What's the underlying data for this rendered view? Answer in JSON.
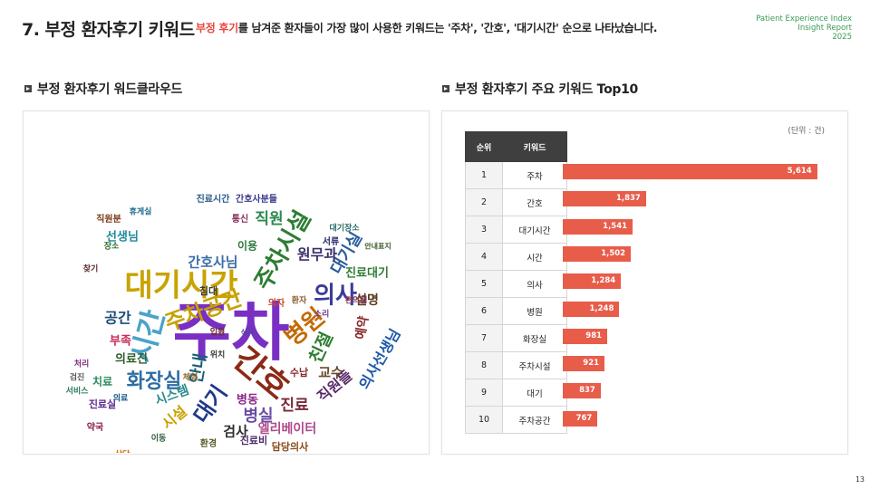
{
  "header": {
    "title": "7. 부정 환자후기 키워드",
    "subtitle_highlight": "부정 후기",
    "subtitle_rest": "를 남겨준 환자들이 가장 많이 사용한 키워드는 '주차', '간호', '대기시간' 순으로 나타났습니다.",
    "brand_line1": "Patient Experience Index",
    "brand_line2": "Insight Report",
    "brand_line3": "2025"
  },
  "sections": {
    "wordcloud_title": "부정 환자후기 워드클라우드",
    "chart_title": "부정 환자후기 주요 키워드 Top10"
  },
  "unit_label": "(단위 : 건)",
  "table_headers": {
    "rank": "순위",
    "keyword": "키워드"
  },
  "colors": {
    "bar": "#e85d4a",
    "accent": "#e8453c",
    "brand": "#3a9a56"
  },
  "chart_data": {
    "type": "bar",
    "orientation": "horizontal",
    "categories": [
      "주차",
      "간호",
      "대기시간",
      "시간",
      "의사",
      "병원",
      "화장실",
      "주차시설",
      "대기",
      "주차공간"
    ],
    "ranks": [
      "1",
      "2",
      "3",
      "4",
      "5",
      "6",
      "7",
      "8",
      "9",
      "10"
    ],
    "values": [
      5614,
      1837,
      1541,
      1502,
      1284,
      1248,
      981,
      921,
      837,
      767
    ],
    "value_labels": [
      "5,614",
      "1,837",
      "1,541",
      "1,502",
      "1,284",
      "1,248",
      "981",
      "921",
      "837",
      "767"
    ],
    "xlim": [
      0,
      5800
    ]
  },
  "wordcloud_words": [
    {
      "text": "주차",
      "color": "#7a2fc4"
    },
    {
      "text": "대기시간",
      "color": "#c9a300"
    },
    {
      "text": "간호",
      "color": "#8b2a16"
    },
    {
      "text": "주차시설",
      "color": "#2e7d32"
    },
    {
      "text": "주차공간",
      "color": "#c7a000"
    },
    {
      "text": "시간",
      "color": "#4aa3c9"
    },
    {
      "text": "의사",
      "color": "#3b3b9b"
    },
    {
      "text": "화장실",
      "color": "#2f6da3"
    },
    {
      "text": "병원",
      "color": "#c46a00"
    },
    {
      "text": "대기",
      "color": "#1e3a8a"
    },
    {
      "text": "병실",
      "color": "#6b4ea3"
    },
    {
      "text": "진료",
      "color": "#7a2a3a"
    },
    {
      "text": "안내",
      "color": "#1b5e7a"
    },
    {
      "text": "간호사님",
      "color": "#3b6ea8"
    },
    {
      "text": "직원",
      "color": "#2d8a4e"
    },
    {
      "text": "친절",
      "color": "#2e7d32"
    },
    {
      "text": "대기실",
      "color": "#2b5d9b"
    },
    {
      "text": "설명",
      "color": "#5a3a1a"
    },
    {
      "text": "예약",
      "color": "#8b2a2a"
    },
    {
      "text": "교수",
      "color": "#6a4c2a"
    },
    {
      "text": "원무과",
      "color": "#3a2f6b"
    },
    {
      "text": "진료대기",
      "color": "#2e7d32"
    },
    {
      "text": "의사선생님",
      "color": "#1e5aa8"
    },
    {
      "text": "직원들",
      "color": "#5a2a6b"
    },
    {
      "text": "엘리베이터",
      "color": "#b04a8b"
    },
    {
      "text": "검사",
      "color": "#2f2f2f"
    },
    {
      "text": "시설",
      "color": "#c9a300"
    },
    {
      "text": "시스템",
      "color": "#2b8a8a"
    },
    {
      "text": "병동",
      "color": "#8a2a8a"
    },
    {
      "text": "공간",
      "color": "#1a4d7a"
    },
    {
      "text": "부족",
      "color": "#c92a5a"
    },
    {
      "text": "의료진",
      "color": "#2e5d2e"
    },
    {
      "text": "선생님",
      "color": "#1e8a9b"
    },
    {
      "text": "진료비",
      "color": "#4a2a6b"
    },
    {
      "text": "담당의사",
      "color": "#8a4a1a"
    },
    {
      "text": "이용",
      "color": "#2a7a3a"
    },
    {
      "text": "침대",
      "color": "#3a3a3a"
    },
    {
      "text": "수납",
      "color": "#8a2a2a"
    },
    {
      "text": "환경",
      "color": "#5a5a2a"
    },
    {
      "text": "치료",
      "color": "#2a8a5a"
    },
    {
      "text": "진료실",
      "color": "#5a2a8a"
    },
    {
      "text": "간호사분들",
      "color": "#3a3a8a"
    },
    {
      "text": "통신",
      "color": "#8a2a5a"
    },
    {
      "text": "진료시간",
      "color": "#2a5a8a"
    },
    {
      "text": "직원분",
      "color": "#7a3a1a"
    },
    {
      "text": "장소",
      "color": "#2a6a2a"
    },
    {
      "text": "의료",
      "color": "#1a5a8a"
    },
    {
      "text": "약국",
      "color": "#8a1a4a"
    },
    {
      "text": "상담",
      "color": "#c96a00"
    },
    {
      "text": "입원",
      "color": "#6a2a2a"
    },
    {
      "text": "서류",
      "color": "#2a2a6a"
    },
    {
      "text": "환자",
      "color": "#8a5a2a"
    },
    {
      "text": "대기장소",
      "color": "#2a6a6a"
    },
    {
      "text": "검진",
      "color": "#5a5a5a"
    },
    {
      "text": "처리",
      "color": "#7a2a7a"
    },
    {
      "text": "서비스",
      "color": "#2a7a5a"
    },
    {
      "text": "체험",
      "color": "#8a6a2a"
    },
    {
      "text": "위치",
      "color": "#3a3a3a"
    },
    {
      "text": "의자",
      "color": "#c94a2a"
    },
    {
      "text": "소리",
      "color": "#6a3a8a"
    },
    {
      "text": "이동",
      "color": "#2a5a3a"
    },
    {
      "text": "휴게실",
      "color": "#1a6a8a"
    },
    {
      "text": "찾기",
      "color": "#5a2a2a"
    },
    {
      "text": "안내표지",
      "color": "#3a5a2a"
    },
    {
      "text": "편의점",
      "color": "#8a3a5a"
    },
    {
      "text": "식사",
      "color": "#4a4a8a"
    }
  ],
  "page_number": "13"
}
